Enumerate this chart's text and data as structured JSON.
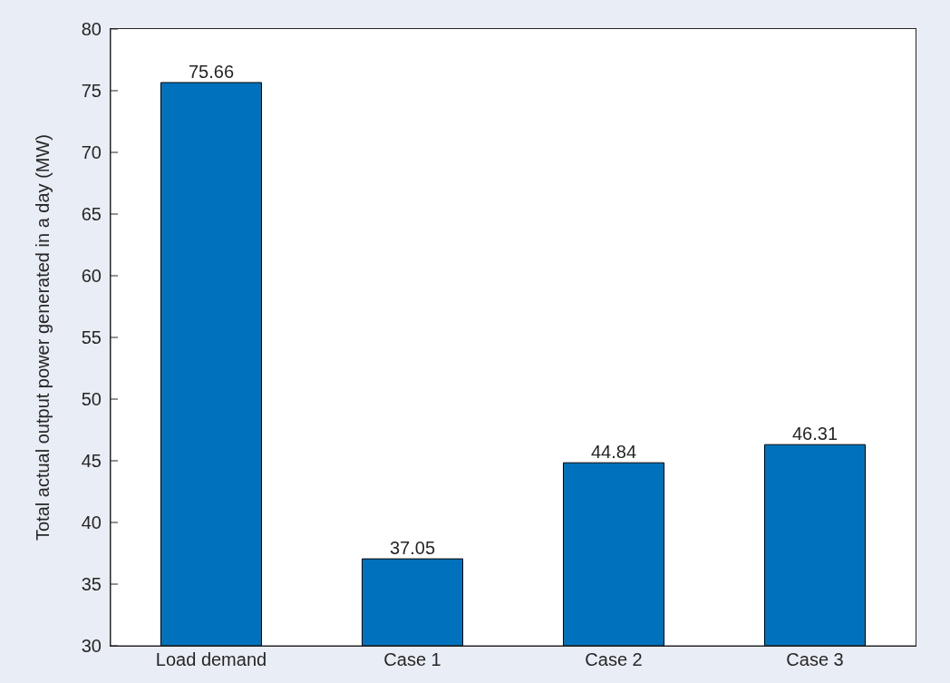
{
  "chart_data": {
    "type": "bar",
    "ylabel": "Total actual output power generated in a day (MW)",
    "categories": [
      "Load demand",
      "Case 1",
      "Case 2",
      "Case 3"
    ],
    "values": [
      75.66,
      37.05,
      44.84,
      46.31
    ],
    "color": "#0072bd",
    "ylim": [
      30,
      80
    ],
    "yticks": [
      30,
      35,
      40,
      45,
      50,
      55,
      60,
      65,
      70,
      75,
      80
    ],
    "data_labels": true
  }
}
